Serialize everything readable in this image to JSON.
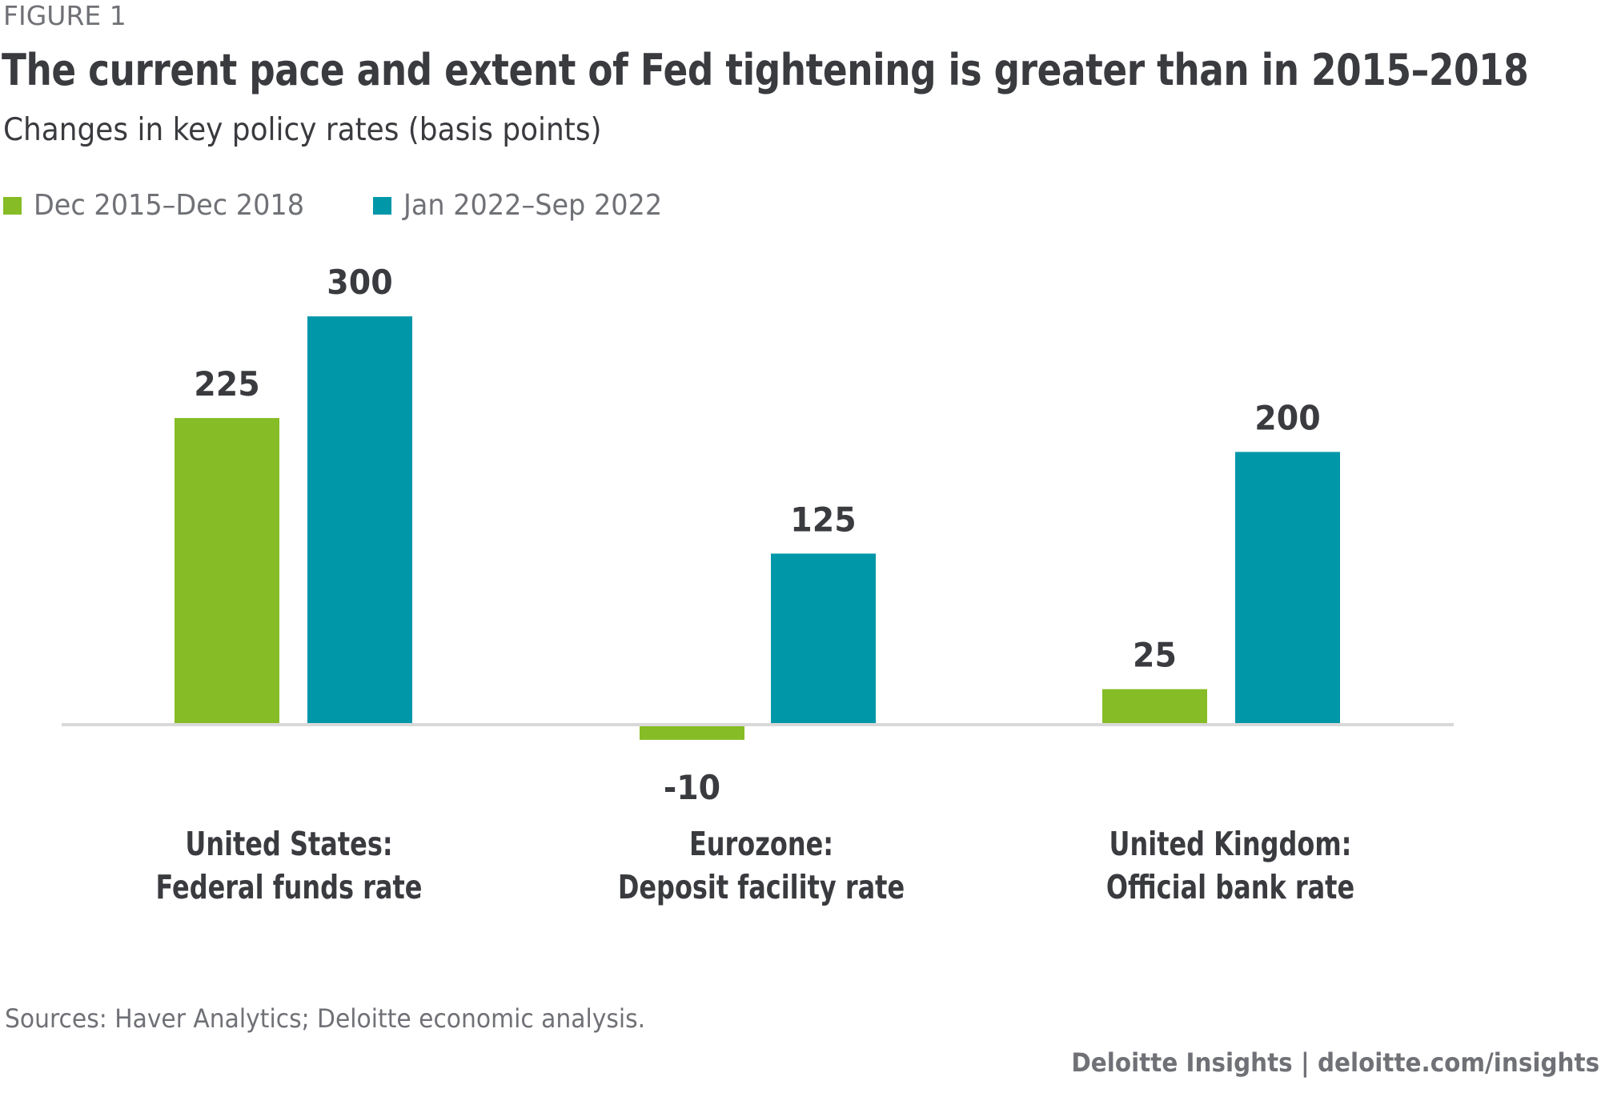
{
  "figure_label": "FIGURE 1",
  "title": "The current pace and extent of Fed tightening is greater than in 2015–2018",
  "subtitle": "Changes in key policy rates (basis points)",
  "legend": [
    {
      "label": "Dec 2015–Dec 2018",
      "color": "#86bc25"
    },
    {
      "label": "Jan 2022–Sep 2022",
      "color": "#0097a9"
    }
  ],
  "source": "Sources: Haver Analytics; Deloitte economic analysis.",
  "credit": "Deloitte Insights | deloitte.com/insights",
  "colors": {
    "series_1": "#86bc25",
    "series_2": "#0097a9",
    "baseline": "#d9d9d9",
    "text_dark": "#3a3b3f",
    "text_gray": "#6f7176"
  },
  "chart_data": {
    "type": "bar",
    "title": "The current pace and extent of Fed tightening is greater than in 2015–2018",
    "subtitle": "Changes in key policy rates (basis points)",
    "xlabel": "",
    "ylabel": "",
    "categories": [
      {
        "line1": "United States:",
        "line2": "Federal funds rate"
      },
      {
        "line1": "Eurozone:",
        "line2": "Deposit facility rate"
      },
      {
        "line1": "United Kingdom:",
        "line2": "Official bank rate"
      }
    ],
    "series": [
      {
        "name": "Dec 2015–Dec 2018",
        "color": "#86bc25",
        "values": [
          225,
          -10,
          25
        ]
      },
      {
        "name": "Jan 2022–Sep 2022",
        "color": "#0097a9",
        "values": [
          300,
          125,
          200
        ]
      }
    ],
    "data_labels": true,
    "ylim": [
      -10,
      300
    ],
    "grid": false,
    "y_axis_shown": false,
    "legend_position": "top-left"
  }
}
